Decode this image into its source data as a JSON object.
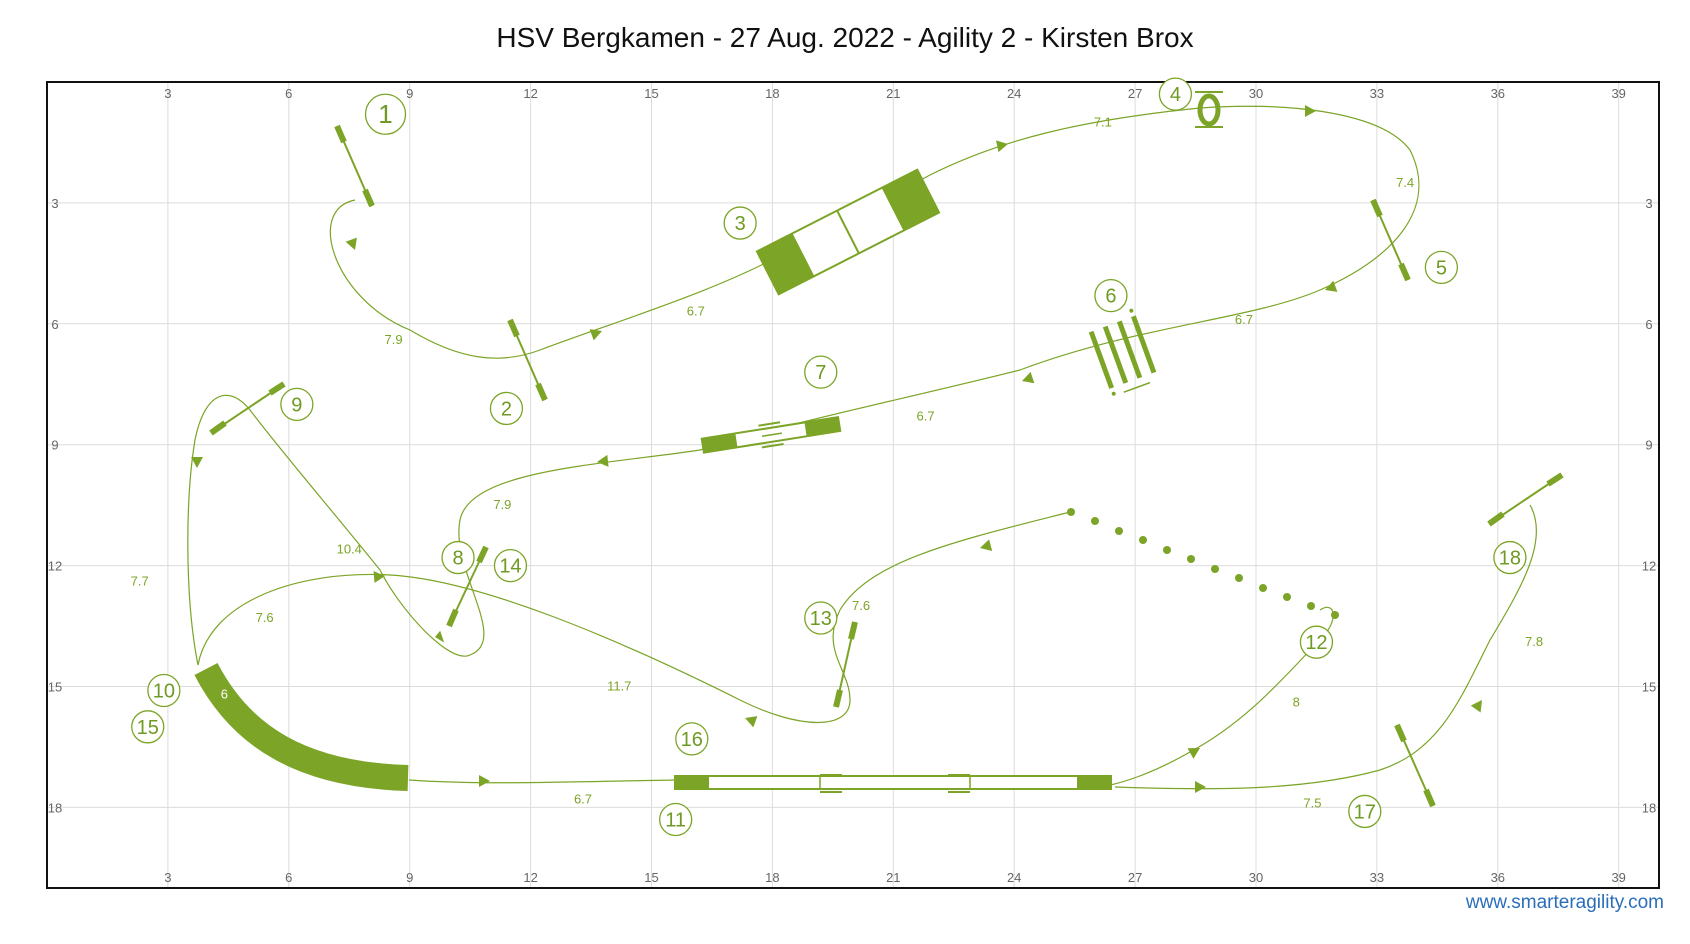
{
  "title": "HSV Bergkamen - 27 Aug. 2022 - Agility 2 - Kirsten Brox",
  "footer": {
    "text": "www.smarteragility.com"
  },
  "colors": {
    "accent": "#7ca427",
    "grid": "#dcdcdc",
    "frame": "#111111",
    "link": "#2a6ebb"
  },
  "course": {
    "x_range": [
      0,
      40
    ],
    "y_range": [
      0,
      20
    ],
    "x_ticks": [
      "3",
      "6",
      "9",
      "12",
      "15",
      "18",
      "21",
      "24",
      "27",
      "30",
      "33",
      "36",
      "39"
    ],
    "y_ticks": [
      "3",
      "6",
      "9",
      "12",
      "15",
      "18"
    ],
    "numbers": [
      {
        "label": "1",
        "x": 8.4,
        "y": 0.8,
        "size": "large"
      },
      {
        "label": "2",
        "x": 11.4,
        "y": 8.1
      },
      {
        "label": "3",
        "x": 17.2,
        "y": 3.5
      },
      {
        "label": "4",
        "x": 28.0,
        "y": 0.3
      },
      {
        "label": "5",
        "x": 34.6,
        "y": 4.6
      },
      {
        "label": "6",
        "x": 26.4,
        "y": 5.3
      },
      {
        "label": "7",
        "x": 19.2,
        "y": 7.2
      },
      {
        "label": "8",
        "x": 10.2,
        "y": 11.8
      },
      {
        "label": "9",
        "x": 6.2,
        "y": 8.0
      },
      {
        "label": "10",
        "x": 2.9,
        "y": 15.1
      },
      {
        "label": "11",
        "x": 15.6,
        "y": 18.3
      },
      {
        "label": "12",
        "x": 31.5,
        "y": 13.9
      },
      {
        "label": "13",
        "x": 19.2,
        "y": 13.3
      },
      {
        "label": "14",
        "x": 11.5,
        "y": 12.0
      },
      {
        "label": "15",
        "x": 2.5,
        "y": 16.0
      },
      {
        "label": "16",
        "x": 16.0,
        "y": 16.3
      },
      {
        "label": "17",
        "x": 32.7,
        "y": 18.1
      },
      {
        "label": "18",
        "x": 36.3,
        "y": 11.8
      }
    ],
    "distances": [
      {
        "label": "7.9",
        "x": 8.6,
        "y": 6.4
      },
      {
        "label": "6.7",
        "x": 16.1,
        "y": 5.7
      },
      {
        "label": "7.1",
        "x": 26.2,
        "y": 1.0
      },
      {
        "label": "7.4",
        "x": 33.7,
        "y": 2.5
      },
      {
        "label": "6.7",
        "x": 29.7,
        "y": 5.9
      },
      {
        "label": "6.7",
        "x": 21.8,
        "y": 8.3
      },
      {
        "label": "7.9",
        "x": 11.3,
        "y": 10.5
      },
      {
        "label": "10.4",
        "x": 7.5,
        "y": 11.6
      },
      {
        "label": "7.7",
        "x": 2.3,
        "y": 12.4
      },
      {
        "label": "7.6",
        "x": 5.4,
        "y": 13.3
      },
      {
        "label": "11.7",
        "x": 14.2,
        "y": 15.0
      },
      {
        "label": "7.6",
        "x": 20.2,
        "y": 13.0
      },
      {
        "label": "8",
        "x": 31.0,
        "y": 15.4
      },
      {
        "label": "6.7",
        "x": 13.3,
        "y": 17.8
      },
      {
        "label": "7.5",
        "x": 31.4,
        "y": 17.9
      },
      {
        "label": "7.8",
        "x": 36.9,
        "y": 13.9
      },
      {
        "label": "6",
        "x": 4.4,
        "y": 15.2
      }
    ]
  }
}
